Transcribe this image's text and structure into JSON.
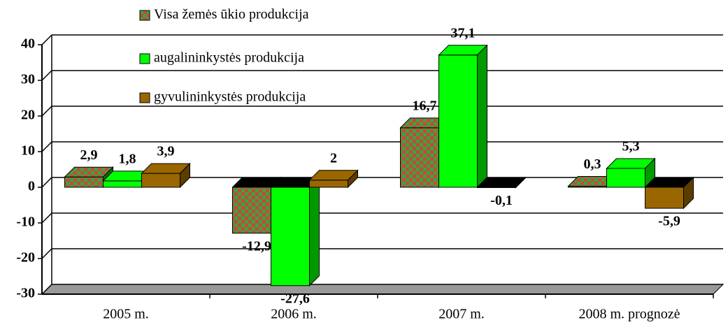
{
  "chart_data": {
    "type": "bar3d",
    "categories": [
      "2005 m.",
      "2006 m.",
      "2007 m.",
      "2008 m. prognozė"
    ],
    "series": [
      {
        "name": "Visa žemės ūkio produkcija",
        "color": "#33aa33",
        "pattern": [
          "#33aa33",
          "#cc4444"
        ],
        "values": [
          2.9,
          -12.9,
          16.7,
          0.3
        ],
        "value_labels": [
          "2,9",
          "-12,9",
          "16,7",
          "0,3"
        ]
      },
      {
        "name": "augalininkystės produkcija",
        "color": "#00ff00",
        "values": [
          1.8,
          -27.6,
          37.1,
          5.3
        ],
        "value_labels": [
          "1,8",
          "-27,6",
          "37,1",
          "5,3"
        ]
      },
      {
        "name": "gyvulininkystės produkcija",
        "color": "#996600",
        "values": [
          3.9,
          2,
          -0.1,
          -5.9
        ],
        "value_labels": [
          "3,9",
          "2",
          "-0,1",
          "-5,9"
        ]
      }
    ],
    "ylim": [
      -30,
      40
    ],
    "yticks": [
      -30,
      -20,
      -10,
      0,
      10,
      20,
      30,
      40
    ],
    "grid": true
  }
}
